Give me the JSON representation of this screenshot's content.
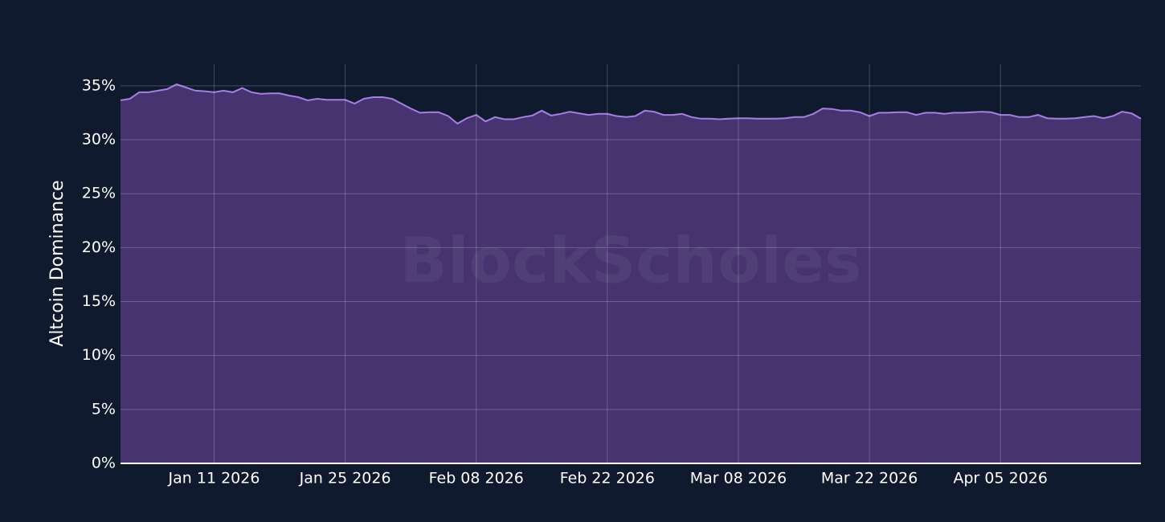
{
  "chart_data": {
    "type": "area",
    "y_label": "Altcoin Dominance",
    "watermark": "BlockScholes",
    "color": "#a77de8",
    "fill_color": "#46336f",
    "grid": true,
    "x": [
      "2026-01-01",
      "2026-01-02",
      "2026-01-03",
      "2026-01-04",
      "2026-01-05",
      "2026-01-06",
      "2026-01-07",
      "2026-01-08",
      "2026-01-09",
      "2026-01-10",
      "2026-01-11",
      "2026-01-12",
      "2026-01-13",
      "2026-01-14",
      "2026-01-15",
      "2026-01-16",
      "2026-01-17",
      "2026-01-18",
      "2026-01-19",
      "2026-01-20",
      "2026-01-21",
      "2026-01-22",
      "2026-01-23",
      "2026-01-24",
      "2026-01-25",
      "2026-01-26",
      "2026-01-27",
      "2026-01-28",
      "2026-01-29",
      "2026-01-30",
      "2026-01-31",
      "2026-02-01",
      "2026-02-02",
      "2026-02-03",
      "2026-02-04",
      "2026-02-05",
      "2026-02-06",
      "2026-02-07",
      "2026-02-08",
      "2026-02-09",
      "2026-02-10",
      "2026-02-11",
      "2026-02-12",
      "2026-02-13",
      "2026-02-14",
      "2026-02-15",
      "2026-02-16",
      "2026-02-17",
      "2026-02-18",
      "2026-02-19",
      "2026-02-20",
      "2026-02-21",
      "2026-02-22",
      "2026-02-23",
      "2026-02-24",
      "2026-02-25",
      "2026-02-26",
      "2026-02-27",
      "2026-02-28",
      "2026-03-01",
      "2026-03-02",
      "2026-03-03",
      "2026-03-04",
      "2026-03-05",
      "2026-03-06",
      "2026-03-07",
      "2026-03-08",
      "2026-03-09",
      "2026-03-10",
      "2026-03-11",
      "2026-03-12",
      "2026-03-13",
      "2026-03-14",
      "2026-03-15",
      "2026-03-16",
      "2026-03-17",
      "2026-03-18",
      "2026-03-19",
      "2026-03-20",
      "2026-03-21",
      "2026-03-22",
      "2026-03-23",
      "2026-03-24",
      "2026-03-25",
      "2026-03-26",
      "2026-03-27",
      "2026-03-28",
      "2026-03-29",
      "2026-03-30",
      "2026-03-31",
      "2026-04-01",
      "2026-04-02",
      "2026-04-03",
      "2026-04-04",
      "2026-04-05",
      "2026-04-06",
      "2026-04-07",
      "2026-04-08",
      "2026-04-09",
      "2026-04-10",
      "2026-04-11",
      "2026-04-12",
      "2026-04-13",
      "2026-04-14",
      "2026-04-15",
      "2026-04-16",
      "2026-04-17",
      "2026-04-18",
      "2026-04-19",
      "2026-04-20"
    ],
    "values": [
      33.66,
      33.8,
      34.4,
      34.4,
      34.55,
      34.7,
      35.15,
      34.85,
      34.55,
      34.5,
      34.4,
      34.55,
      34.4,
      34.8,
      34.4,
      34.25,
      34.3,
      34.3,
      34.1,
      33.95,
      33.65,
      33.8,
      33.7,
      33.7,
      33.7,
      33.35,
      33.8,
      33.95,
      33.95,
      33.8,
      33.35,
      32.9,
      32.5,
      32.55,
      32.55,
      32.2,
      31.5,
      32.0,
      32.3,
      31.7,
      32.1,
      31.9,
      31.9,
      32.1,
      32.25,
      32.7,
      32.25,
      32.4,
      32.6,
      32.45,
      32.3,
      32.4,
      32.4,
      32.2,
      32.1,
      32.2,
      32.7,
      32.6,
      32.3,
      32.3,
      32.4,
      32.1,
      31.95,
      31.95,
      31.9,
      31.95,
      32.0,
      32.0,
      31.95,
      31.95,
      31.95,
      32.0,
      32.1,
      32.1,
      32.4,
      32.9,
      32.85,
      32.7,
      32.7,
      32.55,
      32.2,
      32.5,
      32.5,
      32.55,
      32.55,
      32.3,
      32.5,
      32.5,
      32.4,
      32.5,
      32.5,
      32.55,
      32.6,
      32.55,
      32.3,
      32.3,
      32.1,
      32.1,
      32.3,
      32.0,
      31.95,
      31.95,
      32.0,
      32.1,
      32.2,
      32.0,
      32.2,
      32.6,
      32.45,
      31.95
    ],
    "xlim": [
      "2026-01-01",
      "2026-04-20"
    ],
    "xticks": [
      {
        "value": "2026-01-11",
        "label": "Jan 11 2026"
      },
      {
        "value": "2026-01-25",
        "label": "Jan 25 2026"
      },
      {
        "value": "2026-02-08",
        "label": "Feb 08 2026"
      },
      {
        "value": "2026-02-22",
        "label": "Feb 22 2026"
      },
      {
        "value": "2026-03-08",
        "label": "Mar 08 2026"
      },
      {
        "value": "2026-03-22",
        "label": "Mar 22 2026"
      },
      {
        "value": "2026-04-05",
        "label": "Apr 05 2026"
      }
    ],
    "ylim": [
      0,
      37
    ],
    "yticks": [
      {
        "value": 0,
        "label": "0%"
      },
      {
        "value": 5,
        "label": "5%"
      },
      {
        "value": 10,
        "label": "10%"
      },
      {
        "value": 15,
        "label": "15%"
      },
      {
        "value": 20,
        "label": "20%"
      },
      {
        "value": 25,
        "label": "25%"
      },
      {
        "value": 30,
        "label": "30%"
      },
      {
        "value": 35,
        "label": "35%"
      }
    ]
  }
}
